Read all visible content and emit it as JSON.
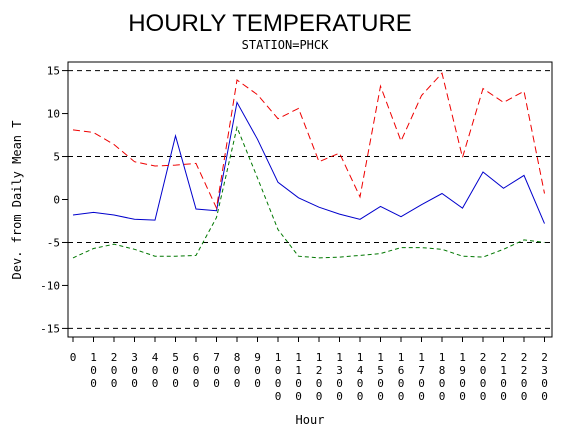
{
  "chart_data": {
    "type": "line",
    "title": "HOURLY TEMPERATURE",
    "subtitle": "STATION=PHCK",
    "xlabel": "Hour",
    "ylabel": "Dev. from Daily Mean T",
    "x": [
      0,
      100,
      200,
      300,
      400,
      500,
      600,
      700,
      800,
      900,
      1000,
      1100,
      1200,
      1300,
      1400,
      1500,
      1600,
      1700,
      1800,
      1900,
      2000,
      2100,
      2200,
      2300
    ],
    "x_tick_labels": [
      "0",
      "100",
      "200",
      "300",
      "400",
      "500",
      "600",
      "700",
      "800",
      "900",
      "1000",
      "1100",
      "1200",
      "1300",
      "1400",
      "1500",
      "1600",
      "1700",
      "1800",
      "1900",
      "2000",
      "2100",
      "2200",
      "2300"
    ],
    "ylim": [
      -16,
      16
    ],
    "y_ticks": [
      -15,
      -10,
      -5,
      0,
      5,
      10,
      15
    ],
    "reference_lines": [
      -15,
      -5,
      5,
      15
    ],
    "series": [
      {
        "color": "#0000cc",
        "dash": "solid",
        "values": [
          -1.8,
          -1.5,
          -1.8,
          -2.3,
          -2.4,
          7.4,
          -1.1,
          -1.3,
          11.3,
          7.0,
          2.0,
          0.2,
          -0.9,
          -1.7,
          -2.3,
          -0.8,
          -2.0,
          -0.6,
          0.7,
          -1.0,
          3.2,
          1.3,
          2.8,
          -2.8
        ]
      },
      {
        "color": "#ee0000",
        "dash": "long",
        "values": [
          8.1,
          7.8,
          6.4,
          4.4,
          3.9,
          4.0,
          4.2,
          -1.0,
          13.9,
          12.2,
          9.4,
          10.6,
          4.4,
          5.4,
          0.3,
          13.2,
          6.8,
          12.1,
          14.7,
          4.9,
          12.9,
          11.3,
          12.6,
          0.7
        ]
      },
      {
        "color": "#007700",
        "dash": "short",
        "values": [
          -6.8,
          -5.7,
          -5.2,
          -5.8,
          -6.6,
          -6.6,
          -6.5,
          -2.1,
          8.4,
          2.5,
          -3.5,
          -6.6,
          -6.8,
          -6.7,
          -6.5,
          -6.3,
          -5.6,
          -5.6,
          -5.8,
          -6.6,
          -6.7,
          -5.8,
          -4.7,
          -5.0
        ]
      }
    ]
  }
}
